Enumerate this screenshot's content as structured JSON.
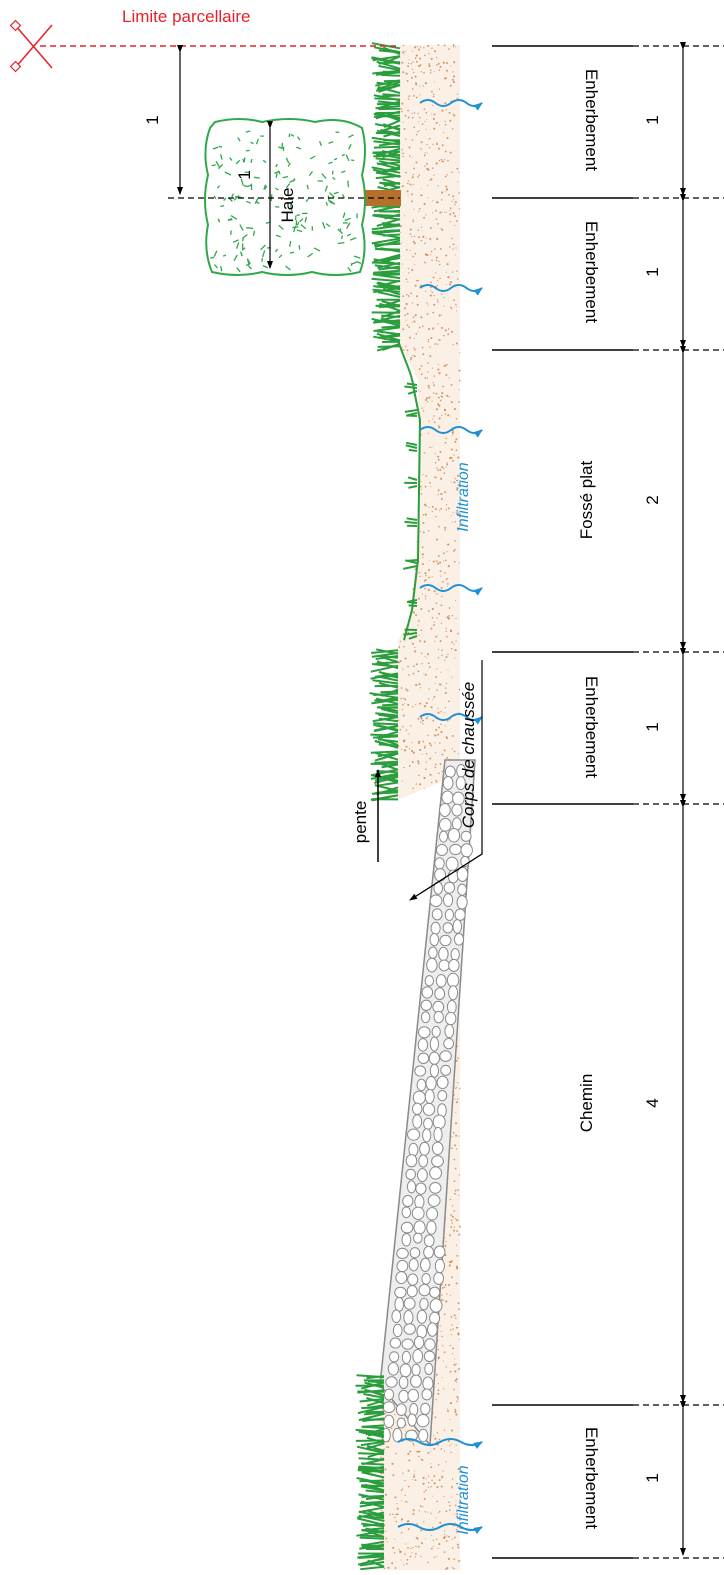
{
  "title": "Limite parcellaire",
  "hedge": {
    "label": "Haie",
    "offset_label": "1",
    "size_label": "1"
  },
  "slope_label": "pente",
  "road_body_label": "Corps de chaussée",
  "infiltration_labels": [
    "Infiltration",
    "Infiltration"
  ],
  "zones": [
    {
      "name": "Enherbement",
      "width": "1"
    },
    {
      "name": "Enherbement",
      "width": "1"
    },
    {
      "name": "Fossé plat",
      "width": "2"
    },
    {
      "name": "Enherbement",
      "width": "1"
    },
    {
      "name": "Chemin",
      "width": "4"
    },
    {
      "name": "Enherbement",
      "width": "1"
    }
  ],
  "colors": {
    "boundary": "#e8202a",
    "grass": "#2a9d3c",
    "hedge": "#2fa84a",
    "soil": "#c9783c",
    "water": "#1e90d6",
    "stone": "#8a8a8a",
    "stake": "#b5702c"
  }
}
